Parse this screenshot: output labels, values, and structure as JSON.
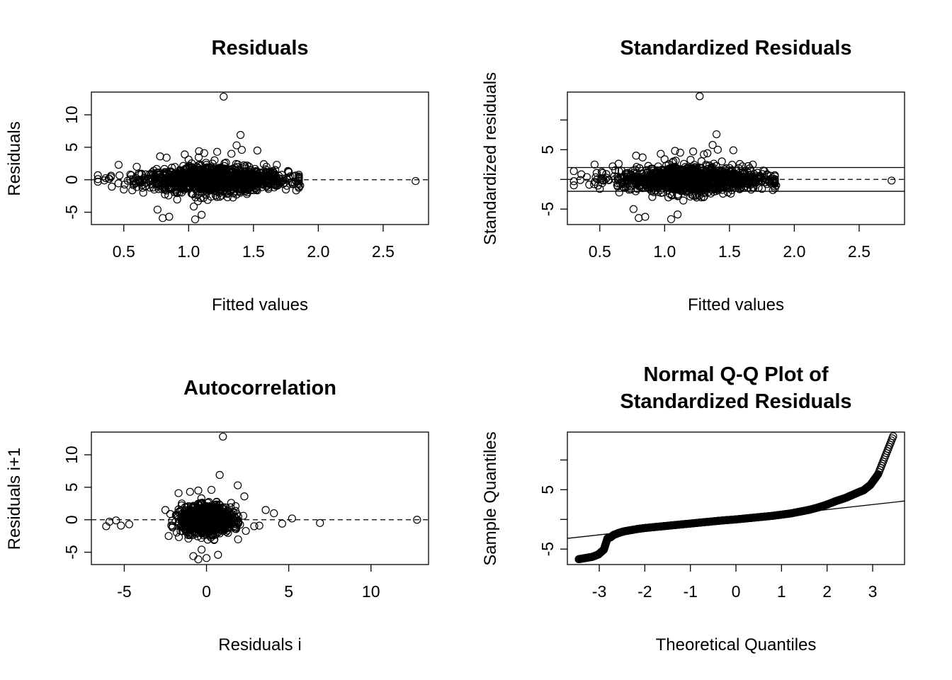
{
  "chart_data": [
    {
      "type": "scatter",
      "title": "Residuals",
      "xlabel": "Fitted values",
      "ylabel": "Residuals",
      "xlim": [
        0.25,
        2.85
      ],
      "ylim": [
        -6.9,
        13.5
      ],
      "xticks": [
        0.5,
        1.0,
        1.5,
        2.0,
        2.5
      ],
      "xtick_labels": [
        "0.5",
        "1.0",
        "1.5",
        "2.0",
        "2.5"
      ],
      "yticks": [
        -5,
        0,
        5,
        10
      ],
      "ytick_labels": [
        "-5",
        "0",
        "5",
        "10"
      ],
      "hlines": [
        {
          "y": 0,
          "style": "dashed"
        }
      ],
      "points": [
        [
          1.27,
          12.8
        ],
        [
          1.4,
          6.9
        ],
        [
          1.37,
          5.3
        ],
        [
          1.53,
          4.5
        ],
        [
          1.41,
          4.6
        ],
        [
          1.08,
          4.4
        ],
        [
          1.12,
          4.1
        ],
        [
          0.97,
          3.9
        ],
        [
          0.78,
          3.6
        ],
        [
          0.83,
          3.4
        ],
        [
          1.22,
          4.3
        ],
        [
          1.33,
          4.0
        ],
        [
          1.58,
          2.4
        ],
        [
          1.6,
          2.0
        ],
        [
          1.77,
          1.3
        ],
        [
          1.82,
          -0.6
        ],
        [
          1.86,
          -0.9
        ],
        [
          1.75,
          -1.5
        ],
        [
          0.46,
          2.3
        ],
        [
          0.6,
          2.0
        ],
        [
          0.35,
          -0.1
        ],
        [
          0.3,
          -0.3
        ],
        [
          0.4,
          0.4
        ],
        [
          0.5,
          -1.5
        ],
        [
          0.7,
          -1.2
        ],
        [
          0.76,
          -4.6
        ],
        [
          0.8,
          -5.9
        ],
        [
          0.85,
          -5.7
        ],
        [
          1.05,
          -6.1
        ],
        [
          1.1,
          -5.4
        ],
        [
          1.21,
          -2.4
        ],
        [
          1.3,
          -2.7
        ],
        [
          2.75,
          -0.2
        ],
        [
          0.55,
          0.8
        ],
        [
          0.65,
          -2.0
        ],
        [
          0.9,
          -1.8
        ],
        [
          1.45,
          -2.2
        ],
        [
          1.68,
          2.3
        ],
        [
          1.0,
          3.1
        ],
        [
          1.2,
          3.0
        ]
      ],
      "cloud": {
        "x_range": [
          0.3,
          1.85
        ],
        "center_x": 1.2,
        "residual_spread": 1.0,
        "n": 1200
      }
    },
    {
      "type": "scatter",
      "title": "Standardized Residuals",
      "xlabel": "Fitted values",
      "ylabel": "Standardized residuals",
      "xlim": [
        0.25,
        2.85
      ],
      "ylim": [
        -7.6,
        14.7
      ],
      "xticks": [
        0.5,
        1.0,
        1.5,
        2.0,
        2.5
      ],
      "xtick_labels": [
        "0.5",
        "1.0",
        "1.5",
        "2.0",
        "2.5"
      ],
      "yticks": [
        -5,
        0,
        5,
        10
      ],
      "ytick_labels": [
        "-5",
        "",
        "5",
        ""
      ],
      "hlines": [
        {
          "y": 0,
          "style": "dashed"
        },
        {
          "y": 2,
          "style": "solid"
        },
        {
          "y": -2,
          "style": "solid"
        }
      ],
      "points": [
        [
          1.27,
          14.0
        ],
        [
          1.4,
          7.6
        ],
        [
          1.37,
          5.8
        ],
        [
          1.53,
          4.9
        ],
        [
          1.41,
          5.0
        ],
        [
          1.08,
          4.8
        ],
        [
          1.12,
          4.5
        ],
        [
          0.97,
          4.3
        ],
        [
          0.78,
          4.0
        ],
        [
          0.83,
          3.7
        ],
        [
          1.22,
          4.7
        ],
        [
          1.33,
          4.4
        ],
        [
          1.58,
          2.6
        ],
        [
          1.6,
          2.2
        ],
        [
          1.77,
          1.4
        ],
        [
          1.82,
          -0.7
        ],
        [
          1.86,
          -1.0
        ],
        [
          1.75,
          -1.6
        ],
        [
          0.46,
          2.5
        ],
        [
          0.6,
          2.2
        ],
        [
          0.35,
          -0.1
        ],
        [
          0.3,
          -0.3
        ],
        [
          0.4,
          0.4
        ],
        [
          0.5,
          -1.6
        ],
        [
          0.7,
          -1.3
        ],
        [
          0.76,
          -5.0
        ],
        [
          0.8,
          -6.5
        ],
        [
          0.85,
          -6.3
        ],
        [
          1.05,
          -6.7
        ],
        [
          1.1,
          -5.9
        ],
        [
          1.21,
          -2.6
        ],
        [
          1.3,
          -3.0
        ],
        [
          2.75,
          -0.2
        ],
        [
          0.55,
          0.9
        ],
        [
          0.65,
          -2.2
        ],
        [
          0.9,
          -2.0
        ],
        [
          1.45,
          -2.4
        ],
        [
          1.68,
          2.5
        ],
        [
          1.0,
          3.4
        ],
        [
          1.2,
          3.3
        ]
      ],
      "cloud": {
        "x_range": [
          0.3,
          1.85
        ],
        "center_x": 1.2,
        "residual_spread": 1.1,
        "n": 1200
      }
    },
    {
      "type": "scatter",
      "title": "Autocorrelation",
      "xlabel": "Residuals i",
      "ylabel": "Residuals i+1",
      "xlim": [
        -7.0,
        13.5
      ],
      "ylim": [
        -6.9,
        13.5
      ],
      "xticks": [
        -5,
        0,
        5,
        10
      ],
      "xtick_labels": [
        "-5",
        "0",
        "5",
        "10"
      ],
      "yticks": [
        -5,
        0,
        5,
        10
      ],
      "ytick_labels": [
        "-5",
        "0",
        "5",
        "10"
      ],
      "hlines": [
        {
          "y": 0,
          "style": "dashed"
        }
      ],
      "points": [
        [
          1.0,
          12.8
        ],
        [
          0.8,
          6.9
        ],
        [
          1.9,
          5.3
        ],
        [
          -1.7,
          4.1
        ],
        [
          -1.0,
          4.3
        ],
        [
          0.3,
          4.6
        ],
        [
          -0.5,
          4.5
        ],
        [
          2.3,
          3.6
        ],
        [
          3.6,
          1.5
        ],
        [
          4.1,
          1.0
        ],
        [
          5.2,
          0.2
        ],
        [
          6.9,
          -0.5
        ],
        [
          12.8,
          0.0
        ],
        [
          4.6,
          -0.6
        ],
        [
          -6.1,
          -1.0
        ],
        [
          -5.9,
          -0.3
        ],
        [
          -5.5,
          -0.1
        ],
        [
          -5.2,
          -0.9
        ],
        [
          -4.7,
          -0.7
        ],
        [
          -2.5,
          1.5
        ],
        [
          -2.3,
          -2.5
        ],
        [
          -0.8,
          -5.6
        ],
        [
          0.0,
          -5.9
        ],
        [
          -0.5,
          -6.1
        ],
        [
          0.7,
          -5.4
        ],
        [
          -0.3,
          -4.6
        ],
        [
          -1.1,
          -2.9
        ],
        [
          1.5,
          2.6
        ],
        [
          -1.5,
          2.5
        ],
        [
          2.9,
          -1.0
        ]
      ],
      "cloud": {
        "center": [
          0,
          0
        ],
        "spread": 1.0,
        "n": 1200
      }
    },
    {
      "type": "scatter",
      "title": "Normal Q-Q Plot of\nStandardized Residuals",
      "xlabel": "Theoretical Quantiles",
      "ylabel": "Sample Quantiles",
      "xlim": [
        -3.7,
        3.7
      ],
      "ylim": [
        -7.6,
        14.7
      ],
      "xticks": [
        -3,
        -2,
        -1,
        0,
        1,
        2,
        3
      ],
      "xtick_labels": [
        "-3",
        "-2",
        "-1",
        "0",
        "1",
        "2",
        "3"
      ],
      "yticks": [
        -5,
        0,
        5,
        10
      ],
      "ytick_labels": [
        "-5",
        "",
        "5",
        ""
      ],
      "reference_line": {
        "slope": 0.85,
        "intercept": -0.05
      },
      "points": [
        [
          -3.45,
          -6.7
        ],
        [
          -3.3,
          -6.5
        ],
        [
          -3.15,
          -6.3
        ],
        [
          -3.02,
          -5.9
        ],
        [
          -2.9,
          -5.1
        ],
        [
          -2.82,
          -3.2
        ],
        [
          -2.75,
          -3.0
        ],
        [
          -2.68,
          -2.6
        ],
        [
          -2.58,
          -2.3
        ],
        [
          -2.45,
          -2.0
        ],
        [
          -2.3,
          -1.8
        ],
        [
          -2.15,
          -1.6
        ],
        [
          -2.0,
          -1.45
        ],
        [
          -1.8,
          -1.3
        ],
        [
          -1.6,
          -1.15
        ],
        [
          -1.4,
          -1.0
        ],
        [
          -1.2,
          -0.85
        ],
        [
          -1.0,
          -0.7
        ],
        [
          -0.8,
          -0.55
        ],
        [
          -0.6,
          -0.4
        ],
        [
          -0.4,
          -0.25
        ],
        [
          -0.2,
          -0.12
        ],
        [
          0.0,
          0.0
        ],
        [
          0.2,
          0.15
        ],
        [
          0.4,
          0.3
        ],
        [
          0.6,
          0.45
        ],
        [
          0.8,
          0.6
        ],
        [
          1.0,
          0.8
        ],
        [
          1.2,
          1.0
        ],
        [
          1.4,
          1.3
        ],
        [
          1.6,
          1.6
        ],
        [
          1.8,
          2.0
        ],
        [
          2.0,
          2.5
        ],
        [
          2.2,
          3.1
        ],
        [
          2.4,
          3.6
        ],
        [
          2.55,
          4.1
        ],
        [
          2.7,
          4.6
        ],
        [
          2.8,
          4.9
        ],
        [
          2.95,
          5.8
        ],
        [
          3.12,
          7.6
        ],
        [
          3.45,
          14.0
        ]
      ],
      "sorted_sample": {
        "n": 1200
      }
    }
  ]
}
